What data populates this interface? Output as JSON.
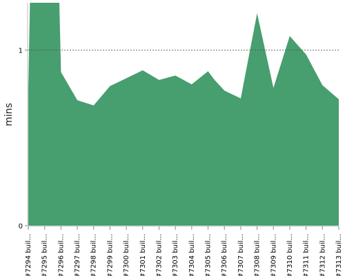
{
  "chart_data": {
    "type": "area",
    "ylabel": "mins",
    "yticks": [
      0,
      1
    ],
    "ylim": [
      0,
      1.27
    ],
    "reference_line": 1,
    "color": "#479e6e",
    "categories": [
      "#7294 buil...",
      "#7295 buil...",
      "#7296 buil...",
      "#7297 buil...",
      "#7298 buil...",
      "#7299 buil...",
      "#7300 buil...",
      "#7301 buil...",
      "#7302 buil...",
      "#7303 buil...",
      "#7304 buil...",
      "#7305 buil...",
      "#7306 buil...",
      "#7307 buil...",
      "#7308 buil...",
      "#7309 buil...",
      "#7310 buil...",
      "#7311 buil...",
      "#7312 buil...",
      "#7313 buil..."
    ],
    "points": [
      {
        "x": 0,
        "y": 0.78
      },
      {
        "x": 0.1,
        "y": 1.3
      },
      {
        "x": 1.9,
        "y": 1.3
      },
      {
        "x": 2.0,
        "y": 0.875
      },
      {
        "x": 3,
        "y": 0.715
      },
      {
        "x": 4,
        "y": 0.685
      },
      {
        "x": 5,
        "y": 0.795
      },
      {
        "x": 6,
        "y": 0.84
      },
      {
        "x": 7,
        "y": 0.885
      },
      {
        "x": 8,
        "y": 0.83
      },
      {
        "x": 9,
        "y": 0.855
      },
      {
        "x": 10,
        "y": 0.805
      },
      {
        "x": 11,
        "y": 0.88
      },
      {
        "x": 11.4,
        "y": 0.83
      },
      {
        "x": 12,
        "y": 0.77
      },
      {
        "x": 13,
        "y": 0.725
      },
      {
        "x": 14,
        "y": 1.21
      },
      {
        "x": 15,
        "y": 0.785
      },
      {
        "x": 16,
        "y": 1.08
      },
      {
        "x": 17,
        "y": 0.975
      },
      {
        "x": 18,
        "y": 0.8
      },
      {
        "x": 19,
        "y": 0.72
      }
    ]
  }
}
